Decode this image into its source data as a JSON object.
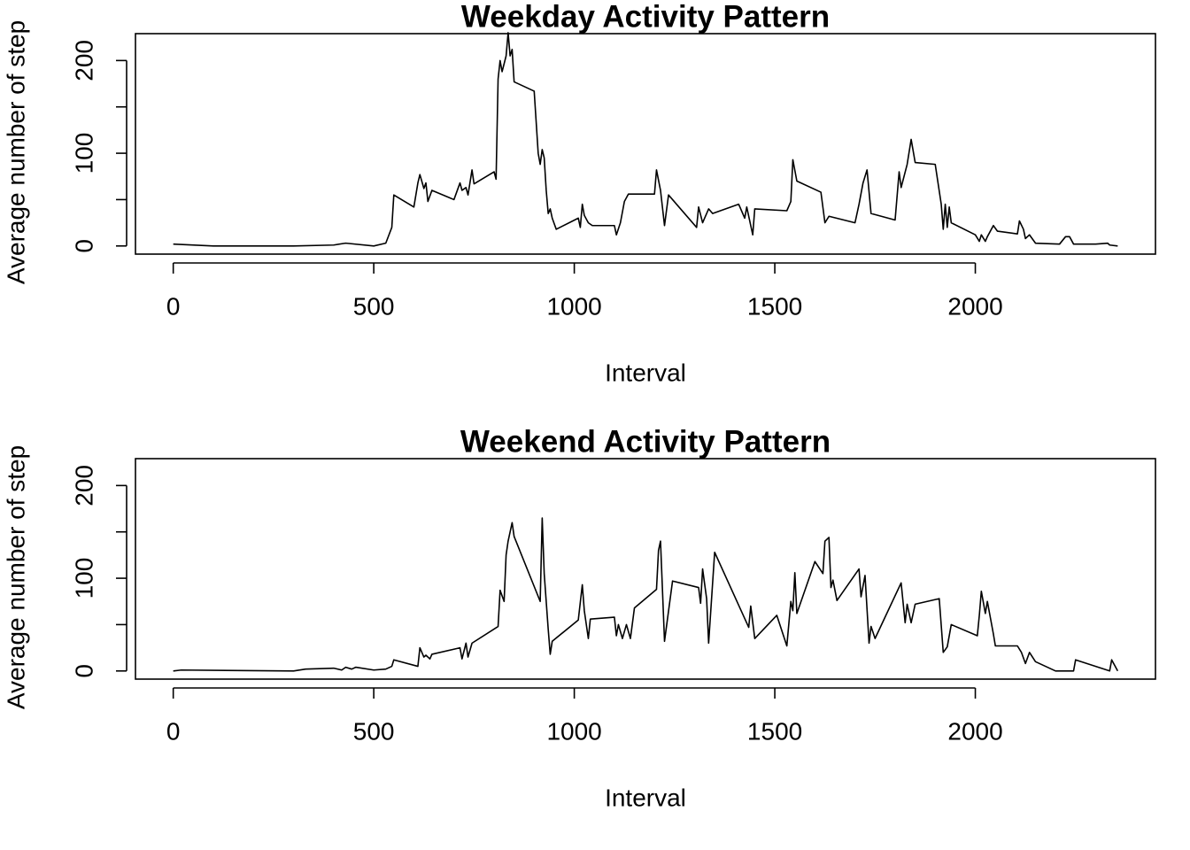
{
  "chart_data": [
    {
      "type": "line",
      "title": "Weekday Activity Pattern",
      "x_label": "Interval",
      "y_label": "Average number of step",
      "xlim": [
        -94.2,
        2449.2
      ],
      "ylim": [
        -8.8,
        229
      ],
      "xticks": [
        0,
        500,
        1000,
        1500,
        2000
      ],
      "yticks": [
        0,
        100,
        200
      ],
      "yticks_unlabeled": [
        50,
        150
      ],
      "series": [
        {
          "color": "#000000",
          "x": [
            0,
            100,
            300,
            400,
            430,
            500,
            530,
            545,
            550,
            600,
            610,
            615,
            625,
            630,
            635,
            645,
            700,
            715,
            720,
            730,
            735,
            745,
            750,
            800,
            805,
            810,
            815,
            820,
            830,
            835,
            840,
            845,
            850,
            900,
            910,
            915,
            920,
            925,
            930,
            935,
            940,
            945,
            955,
            1010,
            1015,
            1020,
            1025,
            1035,
            1045,
            1100,
            1105,
            1115,
            1125,
            1135,
            1200,
            1205,
            1215,
            1225,
            1235,
            1305,
            1310,
            1320,
            1335,
            1345,
            1410,
            1425,
            1430,
            1445,
            1450,
            1530,
            1540,
            1545,
            1555,
            1615,
            1625,
            1635,
            1700,
            1710,
            1720,
            1730,
            1740,
            1800,
            1810,
            1815,
            1830,
            1840,
            1850,
            1900,
            1915,
            1920,
            1925,
            1930,
            1935,
            1940,
            2000,
            2010,
            2015,
            2025,
            2030,
            2045,
            2055,
            2105,
            2110,
            2120,
            2125,
            2135,
            2150,
            2210,
            2225,
            2235,
            2245,
            2300,
            2330,
            2335,
            2355
          ],
          "values": [
            2,
            0,
            0,
            1,
            3,
            0,
            3,
            20,
            55,
            42,
            68,
            77,
            62,
            68,
            48,
            60,
            50,
            68,
            60,
            63,
            55,
            82,
            67,
            80,
            72,
            180,
            200,
            188,
            205,
            230,
            205,
            212,
            177,
            167,
            100,
            88,
            104,
            95,
            60,
            35,
            40,
            30,
            18,
            30,
            20,
            45,
            33,
            25,
            22,
            22,
            12,
            25,
            48,
            56,
            56,
            82,
            60,
            22,
            55,
            20,
            42,
            25,
            40,
            35,
            45,
            30,
            42,
            12,
            40,
            38,
            48,
            93,
            70,
            58,
            25,
            32,
            25,
            45,
            68,
            82,
            35,
            28,
            80,
            63,
            88,
            115,
            90,
            88,
            45,
            18,
            45,
            20,
            42,
            25,
            12,
            5,
            12,
            5,
            10,
            22,
            16,
            13,
            27,
            18,
            8,
            12,
            3,
            2,
            10,
            10,
            2,
            2,
            3,
            1,
            0
          ]
        }
      ]
    },
    {
      "type": "line",
      "title": "Weekend Activity Pattern",
      "x_label": "Interval",
      "y_label": "Average number of step",
      "xlim": [
        -94.2,
        2449.2
      ],
      "ylim": [
        -8.8,
        229
      ],
      "xticks": [
        0,
        500,
        1000,
        1500,
        2000
      ],
      "yticks": [
        0,
        100,
        200
      ],
      "yticks_unlabeled": [
        50,
        150
      ],
      "series": [
        {
          "color": "#000000",
          "x": [
            0,
            20,
            300,
            330,
            400,
            420,
            430,
            445,
            455,
            500,
            530,
            545,
            550,
            610,
            615,
            625,
            630,
            640,
            645,
            715,
            720,
            730,
            735,
            745,
            810,
            815,
            825,
            830,
            835,
            845,
            850,
            915,
            920,
            925,
            935,
            940,
            945,
            1010,
            1020,
            1025,
            1035,
            1040,
            1100,
            1105,
            1110,
            1120,
            1130,
            1140,
            1150,
            1205,
            1210,
            1215,
            1225,
            1245,
            1310,
            1315,
            1320,
            1330,
            1335,
            1350,
            1435,
            1440,
            1450,
            1505,
            1530,
            1540,
            1545,
            1550,
            1555,
            1600,
            1620,
            1625,
            1635,
            1640,
            1645,
            1655,
            1710,
            1715,
            1725,
            1735,
            1740,
            1750,
            1815,
            1825,
            1830,
            1840,
            1850,
            1910,
            1920,
            1930,
            1940,
            2005,
            2010,
            2015,
            2025,
            2030,
            2045,
            2050,
            2100,
            2105,
            2115,
            2125,
            2135,
            2150,
            2200,
            2245,
            2250,
            2335,
            2340,
            2355
          ],
          "values": [
            0,
            1,
            0,
            2,
            3,
            1,
            4,
            2,
            4,
            1,
            2,
            5,
            12,
            5,
            25,
            15,
            17,
            13,
            18,
            25,
            13,
            30,
            15,
            30,
            48,
            87,
            75,
            125,
            140,
            160,
            145,
            75,
            165,
            105,
            45,
            18,
            32,
            55,
            93,
            65,
            35,
            56,
            58,
            38,
            50,
            35,
            50,
            35,
            68,
            88,
            130,
            140,
            32,
            97,
            90,
            73,
            110,
            78,
            30,
            128,
            47,
            70,
            35,
            60,
            27,
            75,
            65,
            106,
            62,
            118,
            105,
            140,
            144,
            90,
            98,
            76,
            110,
            80,
            103,
            30,
            48,
            35,
            95,
            52,
            72,
            52,
            72,
            78,
            20,
            26,
            50,
            38,
            60,
            86,
            62,
            75,
            40,
            27,
            27,
            27,
            20,
            8,
            20,
            10,
            0,
            0,
            12,
            0,
            12,
            0
          ]
        }
      ]
    }
  ]
}
